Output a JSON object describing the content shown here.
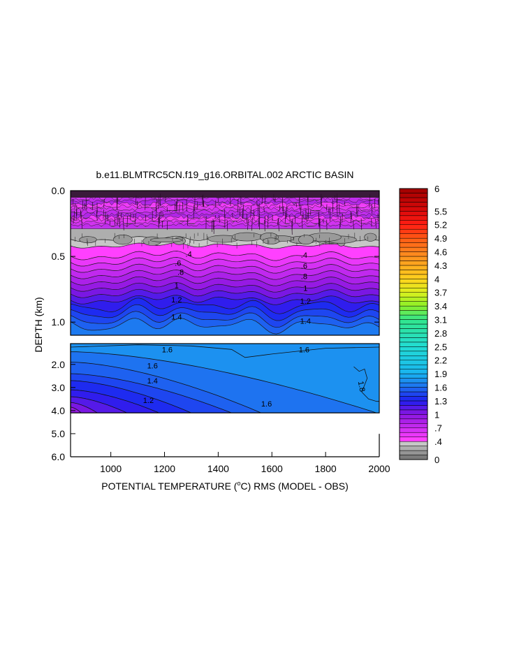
{
  "chart_data": {
    "type": "heatmap",
    "title": "b.e11.BLMTRC5CN.f19_g16.ORBITAL.002 ARCTIC BASIN",
    "xlabel_prefix": "POTENTIAL TEMPERATURE (",
    "xlabel_unit_sup": "o",
    "xlabel_unit": "C) RMS (MODEL - OBS)",
    "ylabel": "DEPTH (km)",
    "xlim": [
      850,
      2000
    ],
    "x_ticks": [
      1000,
      1200,
      1400,
      1600,
      1800,
      2000
    ],
    "x_tick_labels": [
      "1000",
      "1200",
      "1400",
      "1600",
      "1800",
      "2000"
    ],
    "upper_panel": {
      "ylim": [
        0.0,
        1.1
      ],
      "y_ticks": [
        0.0,
        0.5,
        1.0
      ],
      "y_tick_labels": [
        "0.0",
        "0.5",
        "1.0"
      ]
    },
    "lower_panel": {
      "ylim": [
        1.1,
        6.0
      ],
      "y_ticks": [
        2.0,
        3.0,
        4.0,
        5.0,
        6.0
      ],
      "y_tick_labels": [
        "2.0",
        "3.0",
        "4.0",
        "5.0",
        "6.0"
      ],
      "data_bottom_depth": 4.1
    },
    "contour_labels": [
      {
        "text": ".4",
        "x": 1290,
        "depth": 0.48,
        "panel": "upper"
      },
      {
        "text": ".4",
        "x": 1720,
        "depth": 0.49,
        "panel": "upper"
      },
      {
        "text": ".6",
        "x": 1250,
        "depth": 0.55,
        "panel": "upper"
      },
      {
        "text": ".6",
        "x": 1720,
        "depth": 0.57,
        "panel": "upper"
      },
      {
        "text": ".8",
        "x": 1260,
        "depth": 0.62,
        "panel": "upper"
      },
      {
        "text": ".8",
        "x": 1720,
        "depth": 0.65,
        "panel": "upper"
      },
      {
        "text": "1",
        "x": 1245,
        "depth": 0.72,
        "panel": "upper"
      },
      {
        "text": "1",
        "x": 1725,
        "depth": 0.74,
        "panel": "upper"
      },
      {
        "text": "1.2",
        "x": 1245,
        "depth": 0.83,
        "panel": "upper"
      },
      {
        "text": "1.2",
        "x": 1725,
        "depth": 0.84,
        "panel": "upper"
      },
      {
        "text": "1.4",
        "x": 1245,
        "depth": 0.96,
        "panel": "upper"
      },
      {
        "text": "1.4",
        "x": 1725,
        "depth": 0.99,
        "panel": "upper"
      },
      {
        "text": "1.6",
        "x": 1210,
        "depth": 1.35,
        "panel": "lower"
      },
      {
        "text": "1.6",
        "x": 1720,
        "depth": 1.35,
        "panel": "lower"
      },
      {
        "text": "1.6",
        "x": 1155,
        "depth": 2.05,
        "panel": "lower"
      },
      {
        "text": "1.4",
        "x": 1155,
        "depth": 2.7,
        "panel": "lower"
      },
      {
        "text": "1.2",
        "x": 1140,
        "depth": 3.55,
        "panel": "lower"
      },
      {
        "text": "1.6",
        "x": 1580,
        "depth": 3.7,
        "panel": "lower"
      },
      {
        "text": "1.8",
        "x": 1935,
        "depth": 2.95,
        "panel": "lower"
      }
    ],
    "colorbar": {
      "levels": [
        0.0,
        0.1,
        0.2,
        0.3,
        0.4,
        0.5,
        0.6,
        0.7,
        0.8,
        0.9,
        1.0,
        1.1,
        1.2,
        1.3,
        1.4,
        1.5,
        1.6,
        1.7,
        1.8,
        1.9,
        2.0,
        2.1,
        2.2,
        2.3,
        2.4,
        2.5,
        2.6,
        2.7,
        2.8,
        2.9,
        3.0,
        3.1,
        3.2,
        3.3,
        3.4,
        3.5,
        3.6,
        3.7,
        3.8,
        3.9,
        4.0,
        4.1,
        4.2,
        4.3,
        4.4,
        4.5,
        4.6,
        4.7,
        4.8,
        4.9,
        5.0,
        5.1,
        5.2,
        5.3,
        5.4,
        5.5,
        5.6,
        5.7,
        5.8,
        5.9,
        6.0
      ],
      "tick_labels": [
        {
          "value": 0,
          "text": "0"
        },
        {
          "value": 0.4,
          "text": ".4"
        },
        {
          "value": 0.7,
          "text": ".7"
        },
        {
          "value": 1.0,
          "text": "1"
        },
        {
          "value": 1.3,
          "text": "1.3"
        },
        {
          "value": 1.6,
          "text": "1.6"
        },
        {
          "value": 1.9,
          "text": "1.9"
        },
        {
          "value": 2.2,
          "text": "2.2"
        },
        {
          "value": 2.5,
          "text": "2.5"
        },
        {
          "value": 2.8,
          "text": "2.8"
        },
        {
          "value": 3.1,
          "text": "3.1"
        },
        {
          "value": 3.4,
          "text": "3.4"
        },
        {
          "value": 3.7,
          "text": "3.7"
        },
        {
          "value": 4.0,
          "text": "4"
        },
        {
          "value": 4.3,
          "text": "4.3"
        },
        {
          "value": 4.6,
          "text": "4.6"
        },
        {
          "value": 4.9,
          "text": "4.9"
        },
        {
          "value": 5.2,
          "text": "5.2"
        },
        {
          "value": 5.5,
          "text": "5.5"
        },
        {
          "value": 6.0,
          "text": "6"
        }
      ],
      "color_stops": [
        {
          "value": 0.0,
          "color": "#6e6e6e"
        },
        {
          "value": 0.4,
          "color": "#d4d4d4"
        },
        {
          "value": 0.45,
          "color": "#ff40ff"
        },
        {
          "value": 1.0,
          "color": "#8c16e0"
        },
        {
          "value": 1.3,
          "color": "#1e1ef0"
        },
        {
          "value": 1.6,
          "color": "#1e6ef0"
        },
        {
          "value": 1.9,
          "color": "#19b4f0"
        },
        {
          "value": 2.5,
          "color": "#22dcd4"
        },
        {
          "value": 3.1,
          "color": "#32e68c"
        },
        {
          "value": 3.4,
          "color": "#8cf028"
        },
        {
          "value": 3.7,
          "color": "#dcf01e"
        },
        {
          "value": 4.0,
          "color": "#ffd21e"
        },
        {
          "value": 4.3,
          "color": "#ffaa1e"
        },
        {
          "value": 4.6,
          "color": "#ff821e"
        },
        {
          "value": 4.9,
          "color": "#ff5a14"
        },
        {
          "value": 5.2,
          "color": "#ff1e14"
        },
        {
          "value": 5.5,
          "color": "#dc0a0a"
        },
        {
          "value": 6.0,
          "color": "#a00000"
        }
      ]
    }
  }
}
